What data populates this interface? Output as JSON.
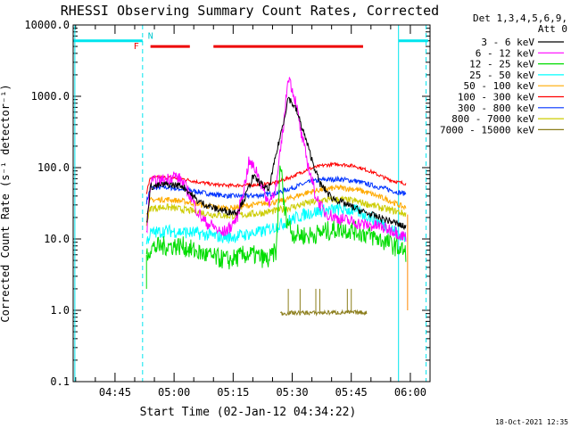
{
  "chart_data": {
    "type": "line",
    "title": "RHESSI Observing Summary Count Rates, Corrected",
    "xlabel": "Start Time (02-Jan-12 04:34:22)",
    "ylabel": "Corrected Count Rate (s⁻¹ detector⁻¹)",
    "yscale": "log",
    "ylim": [
      0.1,
      10000
    ],
    "xlim_minutes": [
      34.37,
      125.0
    ],
    "x_ticks": [
      {
        "minute": 45,
        "label": "04:45"
      },
      {
        "minute": 60,
        "label": "05:00"
      },
      {
        "minute": 75,
        "label": "05:15"
      },
      {
        "minute": 90,
        "label": "05:30"
      },
      {
        "minute": 105,
        "label": "05:45"
      },
      {
        "minute": 120,
        "label": "06:00"
      }
    ],
    "y_ticks": [
      {
        "value": 10000,
        "label": "10000.0"
      },
      {
        "value": 1000,
        "label": "1000.0"
      },
      {
        "value": 100,
        "label": "100.0"
      },
      {
        "value": 10,
        "label": "10.0"
      },
      {
        "value": 1,
        "label": "1.0"
      },
      {
        "value": 0.1,
        "label": "0.1"
      }
    ],
    "legend_header": [
      "Det 1,3,4,5,6,9,",
      "Att 0"
    ],
    "footer_date": "18-Oct-2021 12:35",
    "flag_labels": {
      "F": "F",
      "N": "N"
    },
    "series": [
      {
        "name": "3 - 6 keV",
        "color": "#000000",
        "points": [
          [
            53,
            16
          ],
          [
            54,
            54
          ],
          [
            58,
            58
          ],
          [
            62,
            56
          ],
          [
            64,
            44
          ],
          [
            66,
            34
          ],
          [
            70,
            27
          ],
          [
            74,
            24
          ],
          [
            76,
            24
          ],
          [
            78,
            38
          ],
          [
            80,
            75
          ],
          [
            82,
            60
          ],
          [
            84,
            48
          ],
          [
            86,
            160
          ],
          [
            88,
            500
          ],
          [
            89,
            980
          ],
          [
            91,
            650
          ],
          [
            93,
            300
          ],
          [
            95,
            130
          ],
          [
            97,
            60
          ],
          [
            100,
            38
          ],
          [
            104,
            30
          ],
          [
            108,
            24
          ],
          [
            112,
            20
          ],
          [
            116,
            17
          ],
          [
            118,
            15
          ],
          [
            119,
            15
          ]
        ]
      },
      {
        "name": "6 - 12 keV",
        "color": "#ff00ff",
        "points": [
          [
            53,
            12
          ],
          [
            54,
            62
          ],
          [
            58,
            68
          ],
          [
            60,
            78
          ],
          [
            62,
            65
          ],
          [
            64,
            42
          ],
          [
            66,
            24
          ],
          [
            68,
            17
          ],
          [
            70,
            15
          ],
          [
            72,
            12
          ],
          [
            74,
            14
          ],
          [
            76,
            20
          ],
          [
            78,
            60
          ],
          [
            79,
            120
          ],
          [
            81,
            90
          ],
          [
            82,
            60
          ],
          [
            84,
            32
          ],
          [
            86,
            55
          ],
          [
            88,
            500
          ],
          [
            89,
            2000
          ],
          [
            91,
            800
          ],
          [
            92,
            350
          ],
          [
            94,
            110
          ],
          [
            96,
            40
          ],
          [
            98,
            24
          ],
          [
            101,
            20
          ],
          [
            104,
            18
          ],
          [
            108,
            16
          ],
          [
            112,
            15
          ],
          [
            116,
            13
          ],
          [
            118,
            11
          ],
          [
            119,
            11
          ]
        ]
      },
      {
        "name": "12 - 25 keV",
        "color": "#00dd00",
        "points": [
          [
            53,
            6
          ],
          [
            54,
            7.5
          ],
          [
            58,
            8
          ],
          [
            62,
            8
          ],
          [
            66,
            6.5
          ],
          [
            70,
            5.5
          ],
          [
            74,
            5
          ],
          [
            78,
            6
          ],
          [
            80,
            6
          ],
          [
            82,
            5.5
          ],
          [
            84,
            5
          ],
          [
            86,
            7
          ],
          [
            87,
            130
          ],
          [
            88,
            25
          ],
          [
            90,
            12
          ],
          [
            94,
            11
          ],
          [
            98,
            12.5
          ],
          [
            102,
            14
          ],
          [
            106,
            13
          ],
          [
            110,
            11
          ],
          [
            114,
            9
          ],
          [
            116,
            8
          ],
          [
            118,
            7
          ],
          [
            119,
            6
          ]
        ]
      },
      {
        "name": "25 - 50 keV",
        "color": "#00ffff",
        "points": [
          [
            53,
            9
          ],
          [
            54,
            12
          ],
          [
            58,
            13
          ],
          [
            62,
            12.5
          ],
          [
            66,
            12
          ],
          [
            70,
            11
          ],
          [
            74,
            10.5
          ],
          [
            78,
            11.5
          ],
          [
            82,
            12.5
          ],
          [
            86,
            15
          ],
          [
            90,
            19
          ],
          [
            94,
            23
          ],
          [
            98,
            25
          ],
          [
            102,
            26
          ],
          [
            106,
            25
          ],
          [
            110,
            20
          ],
          [
            114,
            15
          ],
          [
            117,
            12
          ],
          [
            119,
            10
          ]
        ]
      },
      {
        "name": "50 - 100 keV",
        "color": "#ffaa00",
        "points": [
          [
            53,
            22
          ],
          [
            54,
            35
          ],
          [
            58,
            36
          ],
          [
            62,
            34
          ],
          [
            66,
            31
          ],
          [
            70,
            28
          ],
          [
            74,
            27
          ],
          [
            78,
            29
          ],
          [
            82,
            31
          ],
          [
            86,
            33
          ],
          [
            90,
            38
          ],
          [
            94,
            45
          ],
          [
            98,
            50
          ],
          [
            102,
            52
          ],
          [
            106,
            50
          ],
          [
            110,
            43
          ],
          [
            114,
            36
          ],
          [
            117,
            30
          ],
          [
            119,
            27
          ]
        ]
      },
      {
        "name": "100 - 300 keV",
        "color": "#ff0000",
        "points": [
          [
            53,
            45
          ],
          [
            54,
            72
          ],
          [
            58,
            73
          ],
          [
            62,
            70
          ],
          [
            66,
            63
          ],
          [
            70,
            58
          ],
          [
            74,
            56
          ],
          [
            78,
            57
          ],
          [
            82,
            58
          ],
          [
            86,
            62
          ],
          [
            90,
            75
          ],
          [
            94,
            95
          ],
          [
            98,
            108
          ],
          [
            102,
            112
          ],
          [
            106,
            105
          ],
          [
            110,
            88
          ],
          [
            114,
            70
          ],
          [
            117,
            62
          ],
          [
            119,
            60
          ]
        ]
      },
      {
        "name": "300 - 800 keV",
        "color": "#0033ff",
        "points": [
          [
            53,
            33
          ],
          [
            54,
            52
          ],
          [
            58,
            53
          ],
          [
            62,
            50
          ],
          [
            66,
            46
          ],
          [
            70,
            42
          ],
          [
            74,
            40
          ],
          [
            78,
            40
          ],
          [
            82,
            41
          ],
          [
            86,
            44
          ],
          [
            90,
            52
          ],
          [
            94,
            62
          ],
          [
            98,
            68
          ],
          [
            102,
            69
          ],
          [
            106,
            65
          ],
          [
            110,
            57
          ],
          [
            114,
            50
          ],
          [
            117,
            45
          ],
          [
            119,
            43
          ]
        ]
      },
      {
        "name": "800 - 7000 keV",
        "color": "#cccc00",
        "points": [
          [
            53,
            17
          ],
          [
            54,
            27
          ],
          [
            58,
            28
          ],
          [
            62,
            26
          ],
          [
            66,
            24
          ],
          [
            70,
            22
          ],
          [
            74,
            21
          ],
          [
            78,
            22
          ],
          [
            82,
            23
          ],
          [
            86,
            25
          ],
          [
            90,
            28
          ],
          [
            94,
            32
          ],
          [
            98,
            35
          ],
          [
            102,
            36
          ],
          [
            106,
            34
          ],
          [
            110,
            30
          ],
          [
            114,
            26
          ],
          [
            117,
            24
          ],
          [
            119,
            22
          ]
        ]
      },
      {
        "name": "7000 - 15000 keV",
        "color": "#8b7d1a",
        "points": [
          [
            87,
            0.9
          ],
          [
            88,
            0.91
          ],
          [
            90,
            0.92
          ],
          [
            93,
            0.92
          ],
          [
            96,
            0.92
          ],
          [
            99,
            0.93
          ],
          [
            102,
            0.93
          ],
          [
            105,
            0.93
          ],
          [
            109,
            0.93
          ]
        ]
      }
    ],
    "thin_lines": {
      "k7000_spikes_minutes": [
        89,
        92,
        96,
        97,
        104,
        105
      ],
      "k7000_spike_top": 2.0,
      "k800_drop_minute": 119.3,
      "green_drop_start": [
        53,
        2.0
      ],
      "cyan_saa_level": 6000,
      "cyan_saa_segments": [
        [
          34.37,
          52
        ],
        [
          117,
          124.5
        ]
      ],
      "red_flag_level": 5000,
      "red_flag_segments": [
        [
          54,
          64
        ],
        [
          70,
          108
        ]
      ],
      "night_solid_lines": [
        34.8,
        117
      ],
      "dashed_lines": [
        52,
        124
      ]
    }
  }
}
